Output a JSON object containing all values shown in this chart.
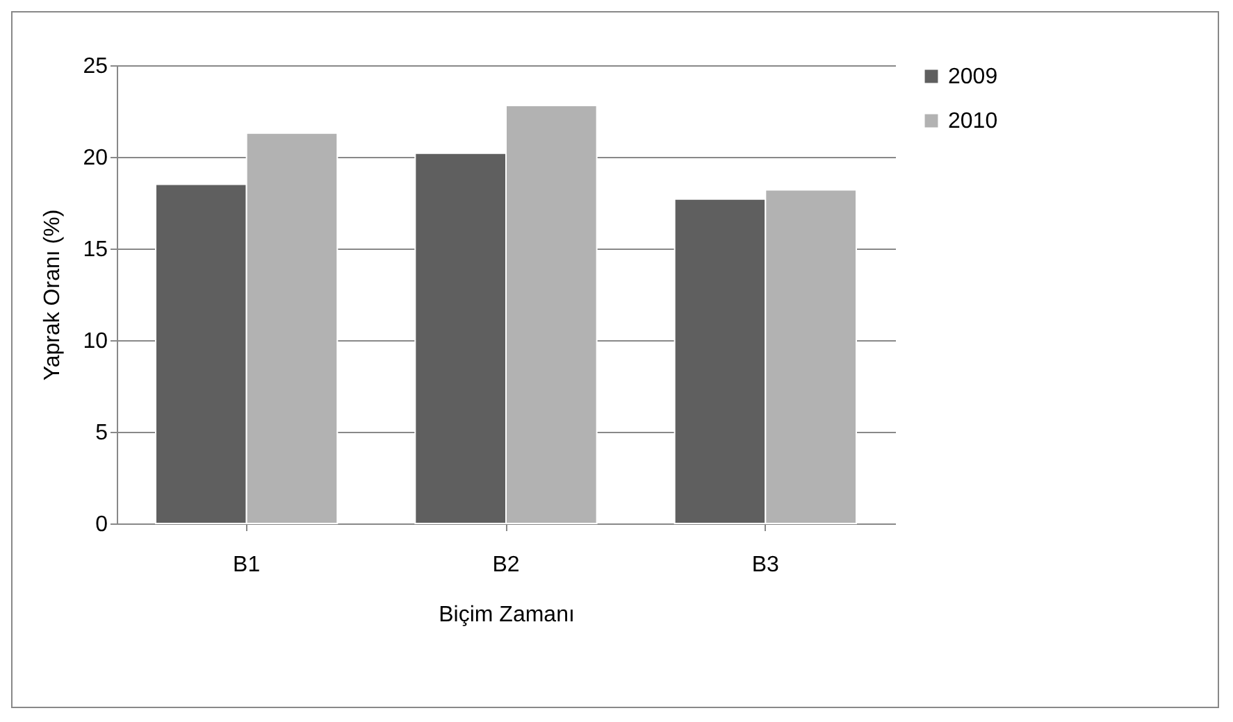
{
  "chart_data": {
    "type": "bar",
    "xlabel": "Biçim Zamanı",
    "ylabel": "Yaprak Oranı (%)",
    "categories": [
      "B1",
      "B2",
      "B3"
    ],
    "series": [
      {
        "name": "2009",
        "color": "#5f5f5f",
        "values": [
          18.5,
          20.2,
          17.7
        ]
      },
      {
        "name": "2010",
        "color": "#b2b2b2",
        "values": [
          21.3,
          22.8,
          18.2
        ]
      }
    ],
    "ylim": [
      0,
      25
    ],
    "yticks": [
      0,
      5,
      10,
      15,
      20,
      25
    ],
    "grid": "y",
    "legend": "right"
  }
}
